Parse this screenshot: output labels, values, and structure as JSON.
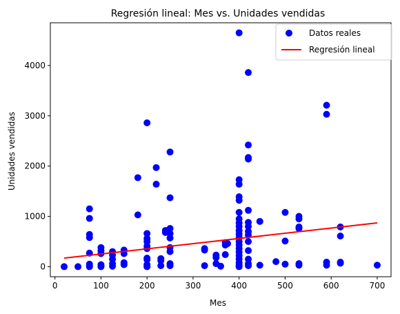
{
  "chart_data": {
    "type": "scatter",
    "title": "Regresión lineal: Mes vs. Unidades vendidas",
    "xlabel": "Mes",
    "ylabel": "Unidades vendidas",
    "xlim": [
      -10,
      730
    ],
    "ylim": [
      -200,
      4850
    ],
    "xticks": [
      0,
      100,
      200,
      300,
      400,
      500,
      600,
      700
    ],
    "yticks": [
      0,
      1000,
      2000,
      3000,
      4000
    ],
    "grid": false,
    "legend_position": "top-right",
    "legend": [
      "Datos reales",
      "Regresión lineal"
    ],
    "colors": {
      "points": "#0000ff",
      "line": "#ff0000"
    },
    "series": [
      {
        "name": "Datos reales",
        "kind": "scatter",
        "points": [
          [
            20,
            0
          ],
          [
            50,
            0
          ],
          [
            75,
            1150
          ],
          [
            75,
            960
          ],
          [
            75,
            640
          ],
          [
            75,
            580
          ],
          [
            75,
            270
          ],
          [
            75,
            50
          ],
          [
            75,
            20
          ],
          [
            75,
            0
          ],
          [
            100,
            380
          ],
          [
            100,
            320
          ],
          [
            100,
            260
          ],
          [
            100,
            40
          ],
          [
            100,
            10
          ],
          [
            100,
            0
          ],
          [
            125,
            300
          ],
          [
            125,
            230
          ],
          [
            125,
            150
          ],
          [
            125,
            60
          ],
          [
            125,
            10
          ],
          [
            150,
            330
          ],
          [
            150,
            260
          ],
          [
            150,
            80
          ],
          [
            150,
            40
          ],
          [
            180,
            1770
          ],
          [
            180,
            1030
          ],
          [
            200,
            2860
          ],
          [
            200,
            660
          ],
          [
            200,
            560
          ],
          [
            200,
            500
          ],
          [
            200,
            410
          ],
          [
            200,
            360
          ],
          [
            200,
            170
          ],
          [
            200,
            140
          ],
          [
            200,
            40
          ],
          [
            200,
            10
          ],
          [
            200,
            0
          ],
          [
            220,
            1970
          ],
          [
            220,
            1640
          ],
          [
            230,
            160
          ],
          [
            230,
            120
          ],
          [
            230,
            20
          ],
          [
            240,
            720
          ],
          [
            240,
            680
          ],
          [
            250,
            2280
          ],
          [
            250,
            1370
          ],
          [
            250,
            760
          ],
          [
            250,
            660
          ],
          [
            250,
            570
          ],
          [
            250,
            380
          ],
          [
            250,
            300
          ],
          [
            250,
            60
          ],
          [
            250,
            20
          ],
          [
            325,
            360
          ],
          [
            325,
            330
          ],
          [
            325,
            20
          ],
          [
            350,
            230
          ],
          [
            350,
            180
          ],
          [
            350,
            60
          ],
          [
            360,
            10
          ],
          [
            370,
            480
          ],
          [
            370,
            430
          ],
          [
            370,
            240
          ],
          [
            375,
            460
          ],
          [
            400,
            4650
          ],
          [
            400,
            1730
          ],
          [
            400,
            1640
          ],
          [
            400,
            1390
          ],
          [
            400,
            1320
          ],
          [
            400,
            1080
          ],
          [
            400,
            950
          ],
          [
            400,
            870
          ],
          [
            400,
            800
          ],
          [
            400,
            720
          ],
          [
            400,
            650
          ],
          [
            400,
            580
          ],
          [
            400,
            500
          ],
          [
            400,
            430
          ],
          [
            400,
            360
          ],
          [
            400,
            290
          ],
          [
            400,
            220
          ],
          [
            400,
            150
          ],
          [
            400,
            80
          ],
          [
            400,
            30
          ],
          [
            400,
            10
          ],
          [
            400,
            0
          ],
          [
            420,
            3860
          ],
          [
            420,
            2420
          ],
          [
            420,
            2170
          ],
          [
            420,
            2140
          ],
          [
            420,
            1120
          ],
          [
            420,
            880
          ],
          [
            420,
            800
          ],
          [
            420,
            700
          ],
          [
            420,
            630
          ],
          [
            420,
            500
          ],
          [
            420,
            320
          ],
          [
            420,
            150
          ],
          [
            420,
            60
          ],
          [
            420,
            20
          ],
          [
            445,
            900
          ],
          [
            445,
            30
          ],
          [
            480,
            100
          ],
          [
            500,
            1080
          ],
          [
            500,
            510
          ],
          [
            500,
            50
          ],
          [
            530,
            1000
          ],
          [
            530,
            950
          ],
          [
            530,
            790
          ],
          [
            530,
            760
          ],
          [
            530,
            60
          ],
          [
            530,
            30
          ],
          [
            590,
            3210
          ],
          [
            590,
            3030
          ],
          [
            590,
            90
          ],
          [
            590,
            30
          ],
          [
            620,
            790
          ],
          [
            620,
            610
          ],
          [
            620,
            90
          ],
          [
            620,
            70
          ],
          [
            700,
            30
          ]
        ]
      },
      {
        "name": "Regresión lineal",
        "kind": "line",
        "points": [
          [
            20,
            170
          ],
          [
            700,
            870
          ]
        ]
      }
    ]
  }
}
